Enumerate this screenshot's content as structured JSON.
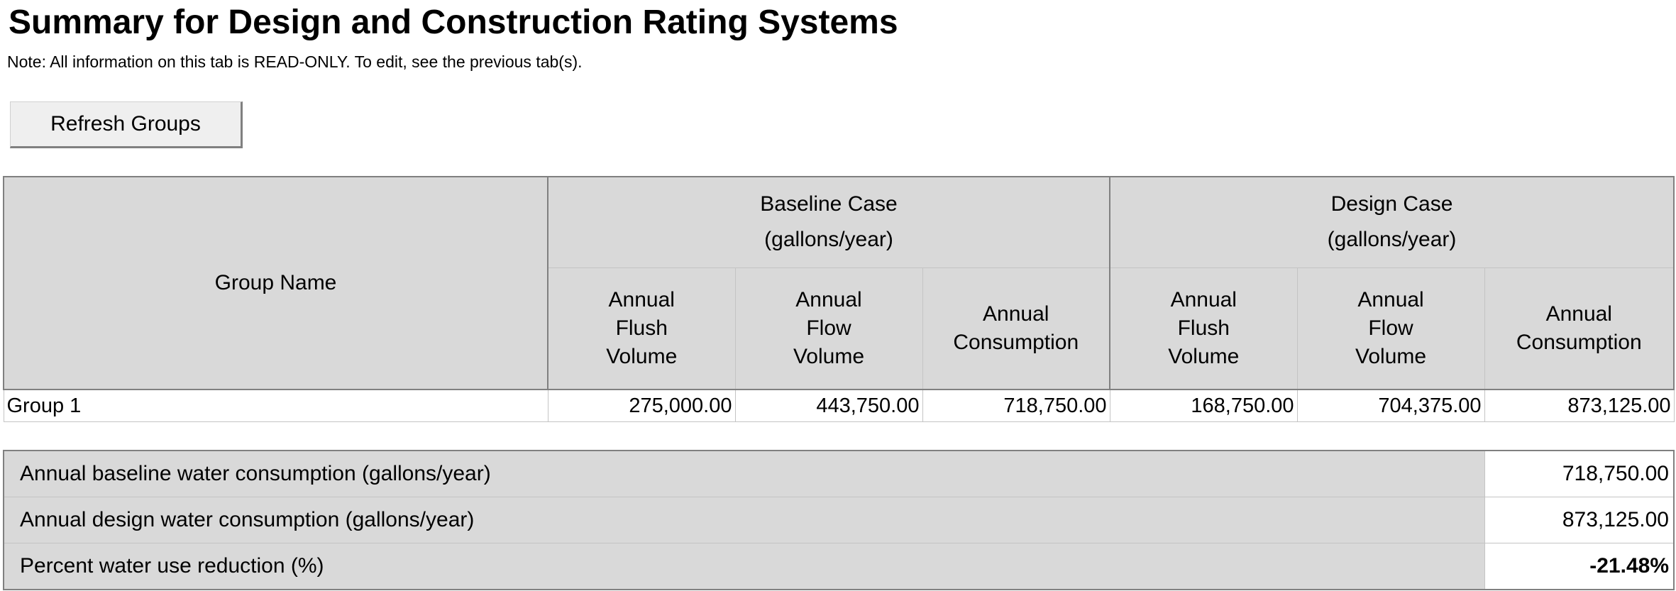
{
  "page": {
    "title": "Summary for Design and Construction Rating Systems",
    "note": "Note: All information on this tab is READ-ONLY. To edit, see the previous tab(s)."
  },
  "toolbar": {
    "refresh_label": "Refresh Groups"
  },
  "groups_table": {
    "group_name_header": "Group Name",
    "baseline_header": [
      "Baseline Case",
      "(gallons/year)"
    ],
    "design_header": [
      "Design Case",
      "(gallons/year)"
    ],
    "sub_headers": {
      "flush": [
        "Annual",
        "Flush",
        "Volume"
      ],
      "flow": [
        "Annual",
        "Flow",
        "Volume"
      ],
      "consumption": [
        "Annual",
        "Consumption"
      ]
    },
    "rows": [
      {
        "name": "Group 1",
        "baseline_flush": "275,000.00",
        "baseline_flow": "443,750.00",
        "baseline_consumption": "718,750.00",
        "design_flush": "168,750.00",
        "design_flow": "704,375.00",
        "design_consumption": "873,125.00"
      }
    ]
  },
  "summary": {
    "rows": [
      {
        "label": "Annual baseline water consumption (gallons/year)",
        "value": "718,750.00"
      },
      {
        "label": "Annual design water consumption (gallons/year)",
        "value": "873,125.00"
      },
      {
        "label": "Percent water use reduction (%)",
        "value": "-21.48%"
      }
    ]
  }
}
